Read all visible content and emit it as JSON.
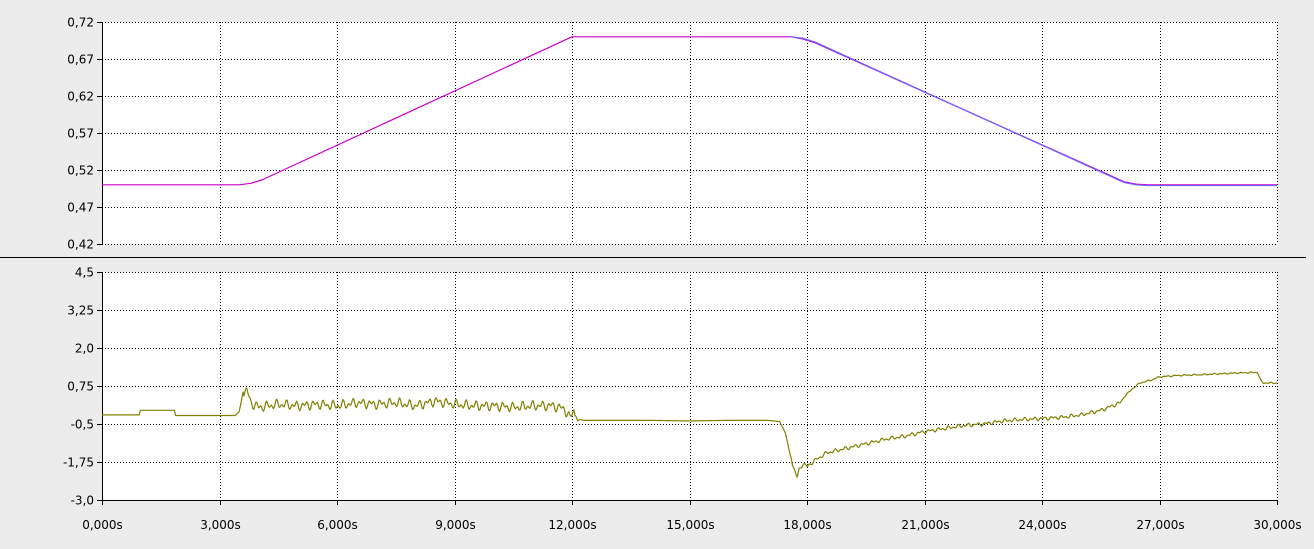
{
  "chart_data": [
    {
      "type": "line",
      "ylim": [
        0.42,
        0.72
      ],
      "xlim": [
        0,
        30000
      ],
      "y_ticks": [
        0.72,
        0.67,
        0.62,
        0.57,
        0.52,
        0.47,
        0.42
      ],
      "y_tick_labels": [
        "0,72",
        "0,67",
        "0,62",
        "0,57",
        "0,52",
        "0,47",
        "0,42"
      ],
      "x_ticks": [
        0,
        3000,
        6000,
        9000,
        12000,
        15000,
        18000,
        21000,
        24000,
        27000,
        30000
      ],
      "grid": true,
      "series": [
        {
          "color": "#cc00cc",
          "x": [
            0,
            3500,
            3800,
            4100,
            12000,
            17600,
            17900,
            18200,
            26100,
            26400,
            26700,
            30000
          ],
          "y": [
            0.5,
            0.5,
            0.502,
            0.507,
            0.7,
            0.7,
            0.697,
            0.692,
            0.504,
            0.501,
            0.5,
            0.5
          ]
        },
        {
          "color": "#6666ff",
          "x": [
            17600,
            17900,
            18200,
            26100,
            26400,
            26700,
            30000
          ],
          "y": [
            0.7,
            0.698,
            0.693,
            0.503,
            0.5,
            0.499,
            0.499
          ]
        }
      ]
    },
    {
      "type": "line",
      "ylim": [
        -3.0,
        4.5
      ],
      "xlim": [
        0,
        30000
      ],
      "y_ticks": [
        4.5,
        3.25,
        2.0,
        0.75,
        -0.5,
        -1.75,
        -3.0
      ],
      "y_tick_labels": [
        "4,5",
        "3,25",
        "2,0",
        "0,75",
        "-0,5",
        "-1,75",
        "-3,0"
      ],
      "x_ticks": [
        0,
        3000,
        6000,
        9000,
        12000,
        15000,
        18000,
        21000,
        24000,
        27000,
        30000
      ],
      "x_tick_labels": [
        "0,000s",
        "3,000s",
        "6,000s",
        "9,000s",
        "12,000s",
        "15,000s",
        "18,000s",
        "21,000s",
        "24,000s",
        "27,000s",
        "30,000s"
      ],
      "grid": true,
      "series": [
        {
          "color": "#808000",
          "x": [
            0,
            950,
            980,
            1850,
            1880,
            3400,
            3500,
            3550,
            3600,
            3700,
            3800,
            4000,
            4500,
            5000,
            5500,
            6000,
            6500,
            7000,
            7500,
            8000,
            8500,
            9000,
            9500,
            10000,
            10500,
            11000,
            11500,
            11800,
            11950,
            12050,
            12100,
            12150,
            12200,
            12300,
            13000,
            14000,
            15000,
            16000,
            17000,
            17300,
            17450,
            17550,
            17650,
            17700,
            17750,
            17800,
            17900,
            18000,
            18200,
            18500,
            19000,
            19500,
            20000,
            20500,
            21000,
            21500,
            22000,
            22500,
            23000,
            23500,
            24000,
            24500,
            25000,
            25500,
            25800,
            26000,
            26100,
            26300,
            26500,
            26800,
            27000,
            27500,
            28000,
            28500,
            29000,
            29500,
            29600,
            29650,
            30000
          ],
          "y": [
            -0.2,
            -0.2,
            -0.05,
            -0.05,
            -0.22,
            -0.22,
            -0.1,
            0.2,
            0.55,
            0.6,
            0.2,
            0.05,
            0.15,
            0.1,
            0.15,
            0.1,
            0.2,
            0.15,
            0.2,
            0.1,
            0.25,
            0.15,
            0.1,
            0.1,
            0.05,
            0.1,
            0.1,
            0.0,
            -0.3,
            -0.05,
            -0.25,
            -0.4,
            -0.35,
            -0.38,
            -0.38,
            -0.38,
            -0.4,
            -0.38,
            -0.38,
            -0.42,
            -0.8,
            -1.4,
            -1.9,
            -2.1,
            -2.25,
            -2.0,
            -1.8,
            -1.9,
            -1.7,
            -1.45,
            -1.3,
            -1.15,
            -1.0,
            -0.9,
            -0.75,
            -0.65,
            -0.55,
            -0.5,
            -0.4,
            -0.35,
            -0.32,
            -0.28,
            -0.2,
            -0.05,
            0.1,
            0.2,
            0.4,
            0.65,
            0.85,
            0.95,
            1.05,
            1.1,
            1.12,
            1.15,
            1.18,
            1.2,
            0.9,
            0.85,
            0.85
          ]
        }
      ]
    }
  ]
}
